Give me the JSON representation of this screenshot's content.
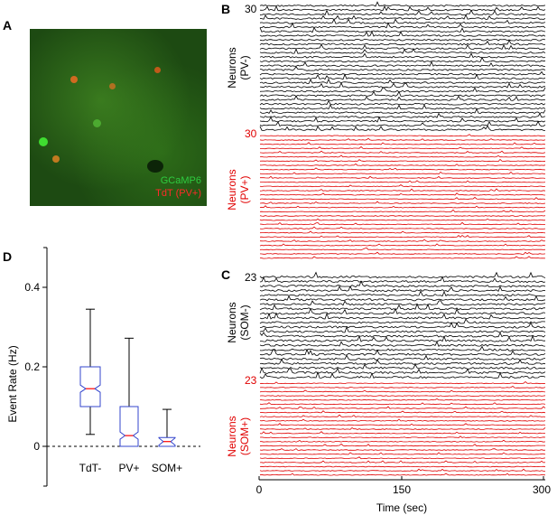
{
  "panels": {
    "a": "A",
    "b": "B",
    "c": "C",
    "d": "D"
  },
  "micrograph": {
    "label_green": "GCaMP6",
    "label_red": "TdT (PV+)",
    "green": "#2ecc40",
    "red": "#ff2a2a"
  },
  "raster_b": {
    "top_count": "30",
    "top_label_1": "Neurons",
    "top_label_2": "(PV-)",
    "bottom_count": "30",
    "bottom_label_1": "Neurons",
    "bottom_label_2": "(PV+)",
    "top_traces": 30,
    "bottom_traces": 30
  },
  "raster_c": {
    "top_count": "23",
    "top_label_1": "Neurons",
    "top_label_2": "(SOM-)",
    "bottom_count": "23",
    "bottom_label_1": "Neurons",
    "bottom_label_2": "(SOM+)",
    "top_traces": 23,
    "bottom_traces": 23
  },
  "time_axis": {
    "label": "Time (sec)",
    "ticks": [
      "0",
      "150",
      "300"
    ]
  },
  "chart_data": {
    "type": "box",
    "ylabel": "Event Rate (Hz)",
    "ylim": [
      -0.1,
      0.5
    ],
    "yticks": [
      "0",
      "0.2",
      "0.4"
    ],
    "categories": [
      "TdT-",
      "PV+",
      "SOM+"
    ],
    "boxes": [
      {
        "min": 0.03,
        "q1": 0.1,
        "median": 0.145,
        "q3": 0.2,
        "max": 0.345
      },
      {
        "min": 0.0,
        "q1": 0.0,
        "median": 0.027,
        "q3": 0.1,
        "max": 0.272
      },
      {
        "min": 0.0,
        "q1": 0.0,
        "median": 0.012,
        "q3": 0.022,
        "max": 0.093
      }
    ],
    "box_color": "#3344cc",
    "median_color": "#ff0000"
  }
}
